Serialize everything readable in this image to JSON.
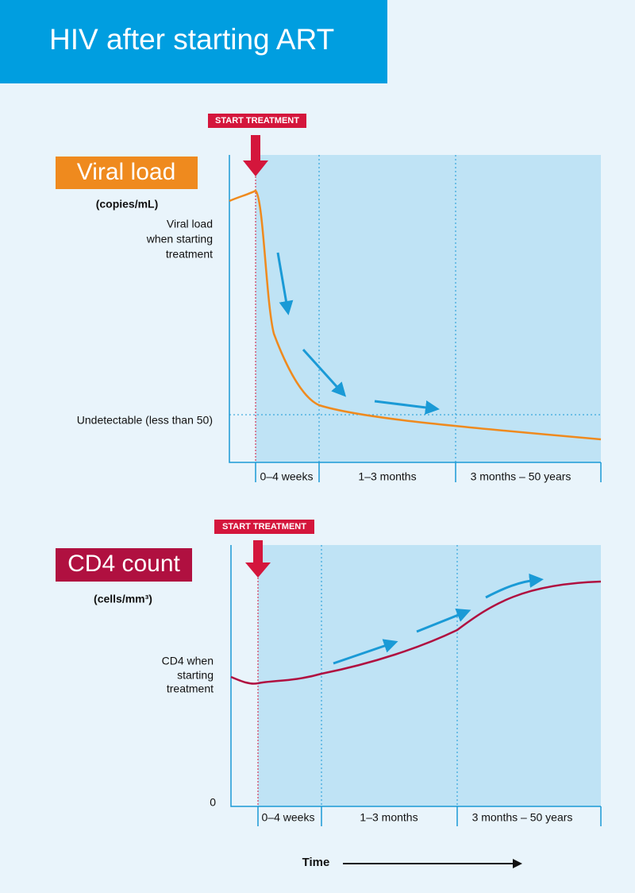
{
  "header": {
    "title": "HIV after starting ART"
  },
  "panels": [
    {
      "marker": "START TREATMENT",
      "title": "Viral load",
      "unit": "(copies/mL)",
      "start_note": [
        "Viral load",
        "when starting",
        "treatment"
      ],
      "threshold_note": "Undetectable (less than 50)",
      "periods": [
        "0–4 weeks",
        "1–3 months",
        "3 months – 50 years"
      ]
    },
    {
      "marker": "START TREATMENT",
      "title": "CD4 count",
      "unit": "(cells/mm³)",
      "start_note": [
        "CD4 when",
        "starting",
        "treatment"
      ],
      "zero_label": "0",
      "periods": [
        "0–4 weeks",
        "1–3 months",
        "3 months – 50 years"
      ]
    }
  ],
  "x_axis": {
    "label": "Time"
  }
}
